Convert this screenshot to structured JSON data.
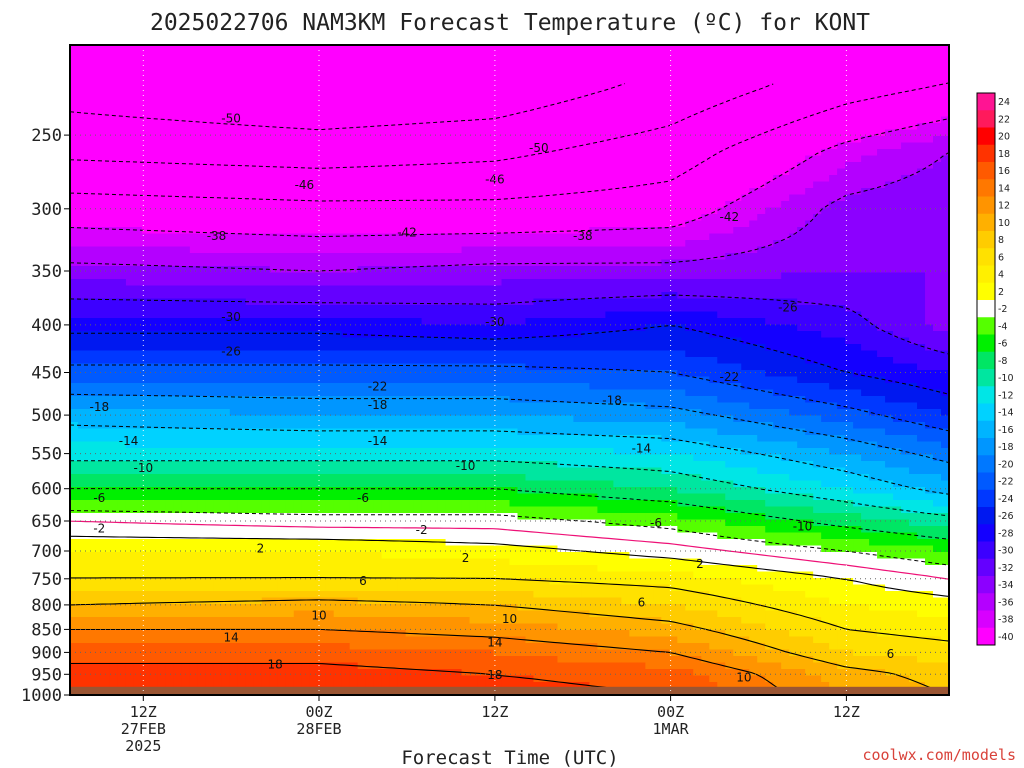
{
  "chart_data": {
    "type": "heatmap",
    "title": "2025022706 NAM3KM Forecast Temperature (ºC) for KONT",
    "xlabel": "Forecast Time (UTC)",
    "ylabel": "",
    "credit": "coolwx.com/models",
    "y_axis": {
      "scale": "log",
      "inverted": true,
      "ticks": [
        250,
        300,
        350,
        400,
        450,
        500,
        550,
        600,
        650,
        700,
        750,
        800,
        850,
        900,
        950,
        1000
      ],
      "ylim": [
        1000,
        200
      ]
    },
    "x_axis": {
      "start": "2025-02-27 07Z",
      "end": "2025-03-01 19Z",
      "ticks": [
        {
          "time": "2025-02-27 12Z",
          "lines": [
            "12Z",
            "27FEB",
            "2025"
          ]
        },
        {
          "time": "2025-02-28 00Z",
          "lines": [
            "00Z",
            "28FEB"
          ]
        },
        {
          "time": "2025-02-28 12Z",
          "lines": [
            "12Z"
          ]
        },
        {
          "time": "2025-03-01 00Z",
          "lines": [
            "00Z",
            "1MAR"
          ]
        },
        {
          "time": "2025-03-01 12Z",
          "lines": [
            "12Z"
          ]
        }
      ],
      "grid": true
    },
    "surface": {
      "pressure_hPa": 980,
      "color": "#9a5533"
    },
    "colorbar": {
      "levels": [
        24,
        22,
        20,
        18,
        16,
        14,
        12,
        10,
        8,
        6,
        4,
        2,
        -2,
        -4,
        -6,
        -8,
        -10,
        -12,
        -14,
        -16,
        -18,
        -20,
        -22,
        -24,
        -26,
        -28,
        -30,
        -32,
        -34,
        -36,
        -38,
        -40
      ],
      "colors": [
        "#ff1493",
        "#ff1a5c",
        "#ff0000",
        "#ff3300",
        "#ff5a00",
        "#ff7800",
        "#ff9400",
        "#ffb000",
        "#ffcc00",
        "#ffe100",
        "#fff000",
        "#ffff00",
        "#ffffff",
        "#55ff00",
        "#00f000",
        "#00e664",
        "#00e6a0",
        "#00e6e6",
        "#00d2ff",
        "#00b4ff",
        "#0096ff",
        "#0078ff",
        "#005aff",
        "#0038ff",
        "#0018f0",
        "#1400ff",
        "#3c00ff",
        "#6400ff",
        "#8c00ff",
        "#b400ff",
        "#d800ff",
        "#ff00ff"
      ]
    },
    "temperature_profiles": {
      "times": [
        "2025-02-27 07Z",
        "2025-02-28 00Z",
        "2025-02-28 12Z",
        "2025-03-01 00Z",
        "2025-03-01 12Z",
        "2025-03-01 19Z"
      ],
      "profiles": [
        {
          "pressure": 220,
          "temps": [
            -52,
            -54,
            -53,
            -49,
            -44,
            -42
          ]
        },
        {
          "pressure": 260,
          "temps": [
            -47,
            -48,
            -47,
            -44,
            -37,
            -34
          ]
        },
        {
          "pressure": 300,
          "temps": [
            -40,
            -41,
            -41,
            -40,
            -33,
            -32
          ]
        },
        {
          "pressure": 350,
          "temps": [
            -33,
            -34,
            -33,
            -33,
            -32,
            -32
          ]
        },
        {
          "pressure": 400,
          "temps": [
            -27,
            -27,
            -28,
            -26,
            -29,
            -33
          ]
        },
        {
          "pressure": 450,
          "temps": [
            -21,
            -21,
            -21,
            -22,
            -26,
            -28
          ]
        },
        {
          "pressure": 500,
          "temps": [
            -15,
            -16,
            -16,
            -17,
            -21,
            -24
          ]
        },
        {
          "pressure": 550,
          "temps": [
            -11,
            -11,
            -11,
            -12,
            -16,
            -19
          ]
        },
        {
          "pressure": 600,
          "temps": [
            -6,
            -6,
            -6,
            -8,
            -12,
            -15
          ]
        },
        {
          "pressure": 650,
          "temps": [
            0,
            -1,
            -1,
            -3,
            -7,
            -9
          ]
        },
        {
          "pressure": 700,
          "temps": [
            4,
            4,
            3,
            1,
            -2,
            -4
          ]
        },
        {
          "pressure": 750,
          "temps": [
            6,
            6,
            6,
            5,
            2,
            0
          ]
        },
        {
          "pressure": 800,
          "temps": [
            10,
            11,
            10,
            8,
            4,
            3
          ]
        },
        {
          "pressure": 850,
          "temps": [
            14,
            14,
            13,
            11,
            6,
            5
          ]
        },
        {
          "pressure": 900,
          "temps": [
            17,
            17,
            16,
            14,
            8,
            7
          ]
        },
        {
          "pressure": 950,
          "temps": [
            19,
            19,
            18,
            17,
            11,
            9
          ]
        },
        {
          "pressure": 1000,
          "temps": [
            20,
            20,
            19,
            18,
            12,
            10
          ]
        }
      ]
    },
    "contours": {
      "dashed": [
        -50,
        -46,
        -42,
        -38,
        -34,
        -30,
        -26,
        -22,
        -18,
        -14,
        -10,
        -6,
        -2
      ],
      "solid": [
        2,
        6,
        10,
        14,
        18
      ],
      "freezing_line_color": "#ee1177",
      "labels": [
        {
          "value": "-50",
          "time": "2025-02-27 18Z",
          "pressure": 240
        },
        {
          "value": "-50",
          "time": "2025-02-28 15Z",
          "pressure": 258
        },
        {
          "value": "-46",
          "time": "2025-02-27 23Z",
          "pressure": 283
        },
        {
          "value": "-46",
          "time": "2025-02-28 12Z",
          "pressure": 279
        },
        {
          "value": "-42",
          "time": "2025-02-28 06Z",
          "pressure": 318
        },
        {
          "value": "-42",
          "time": "2025-03-01 04Z",
          "pressure": 306
        },
        {
          "value": "-38",
          "time": "2025-02-27 17Z",
          "pressure": 321
        },
        {
          "value": "-38",
          "time": "2025-02-28 18Z",
          "pressure": 321
        },
        {
          "value": "-30",
          "time": "2025-02-27 18Z",
          "pressure": 392
        },
        {
          "value": "-30",
          "time": "2025-02-28 12Z",
          "pressure": 397
        },
        {
          "value": "-26",
          "time": "2025-02-27 18Z",
          "pressure": 427
        },
        {
          "value": "-26",
          "time": "2025-03-01 08Z",
          "pressure": 383
        },
        {
          "value": "-22",
          "time": "2025-02-28 04Z",
          "pressure": 466
        },
        {
          "value": "-22",
          "time": "2025-03-01 04Z",
          "pressure": 455
        },
        {
          "value": "-18",
          "time": "2025-02-27 09Z",
          "pressure": 490
        },
        {
          "value": "-18",
          "time": "2025-02-28 04Z",
          "pressure": 488
        },
        {
          "value": "-18",
          "time": "2025-02-28 20Z",
          "pressure": 482
        },
        {
          "value": "-14",
          "time": "2025-02-27 11Z",
          "pressure": 533
        },
        {
          "value": "-14",
          "time": "2025-02-28 04Z",
          "pressure": 533
        },
        {
          "value": "-14",
          "time": "2025-02-28 22Z",
          "pressure": 543
        },
        {
          "value": "-10",
          "time": "2025-02-27 12Z",
          "pressure": 570
        },
        {
          "value": "-10",
          "time": "2025-02-28 10Z",
          "pressure": 567
        },
        {
          "value": "-10",
          "time": "2025-03-01 09Z",
          "pressure": 659
        },
        {
          "value": "-6",
          "time": "2025-02-27 09Z",
          "pressure": 614
        },
        {
          "value": "-6",
          "time": "2025-02-28 03Z",
          "pressure": 614
        },
        {
          "value": "-6",
          "time": "2025-02-28 23Z",
          "pressure": 653
        },
        {
          "value": "-2",
          "time": "2025-02-27 09Z",
          "pressure": 662
        },
        {
          "value": "-2",
          "time": "2025-02-28 07Z",
          "pressure": 665
        },
        {
          "value": "2",
          "time": "2025-02-27 20Z",
          "pressure": 696
        },
        {
          "value": "2",
          "time": "2025-02-28 10Z",
          "pressure": 712
        },
        {
          "value": "2",
          "time": "2025-03-01 02Z",
          "pressure": 723
        },
        {
          "value": "6",
          "time": "2025-02-28 03Z",
          "pressure": 754
        },
        {
          "value": "6",
          "time": "2025-02-28 22Z",
          "pressure": 795
        },
        {
          "value": "6",
          "time": "2025-03-01 15Z",
          "pressure": 903
        },
        {
          "value": "10",
          "time": "2025-02-28 00Z",
          "pressure": 821
        },
        {
          "value": "10",
          "time": "2025-02-28 13Z",
          "pressure": 828
        },
        {
          "value": "10",
          "time": "2025-03-01 05Z",
          "pressure": 958
        },
        {
          "value": "14",
          "time": "2025-02-27 18Z",
          "pressure": 867
        },
        {
          "value": "14",
          "time": "2025-02-28 12Z",
          "pressure": 878
        },
        {
          "value": "18",
          "time": "2025-02-27 21Z",
          "pressure": 927
        },
        {
          "value": "18",
          "time": "2025-02-28 12Z",
          "pressure": 952
        }
      ]
    }
  }
}
